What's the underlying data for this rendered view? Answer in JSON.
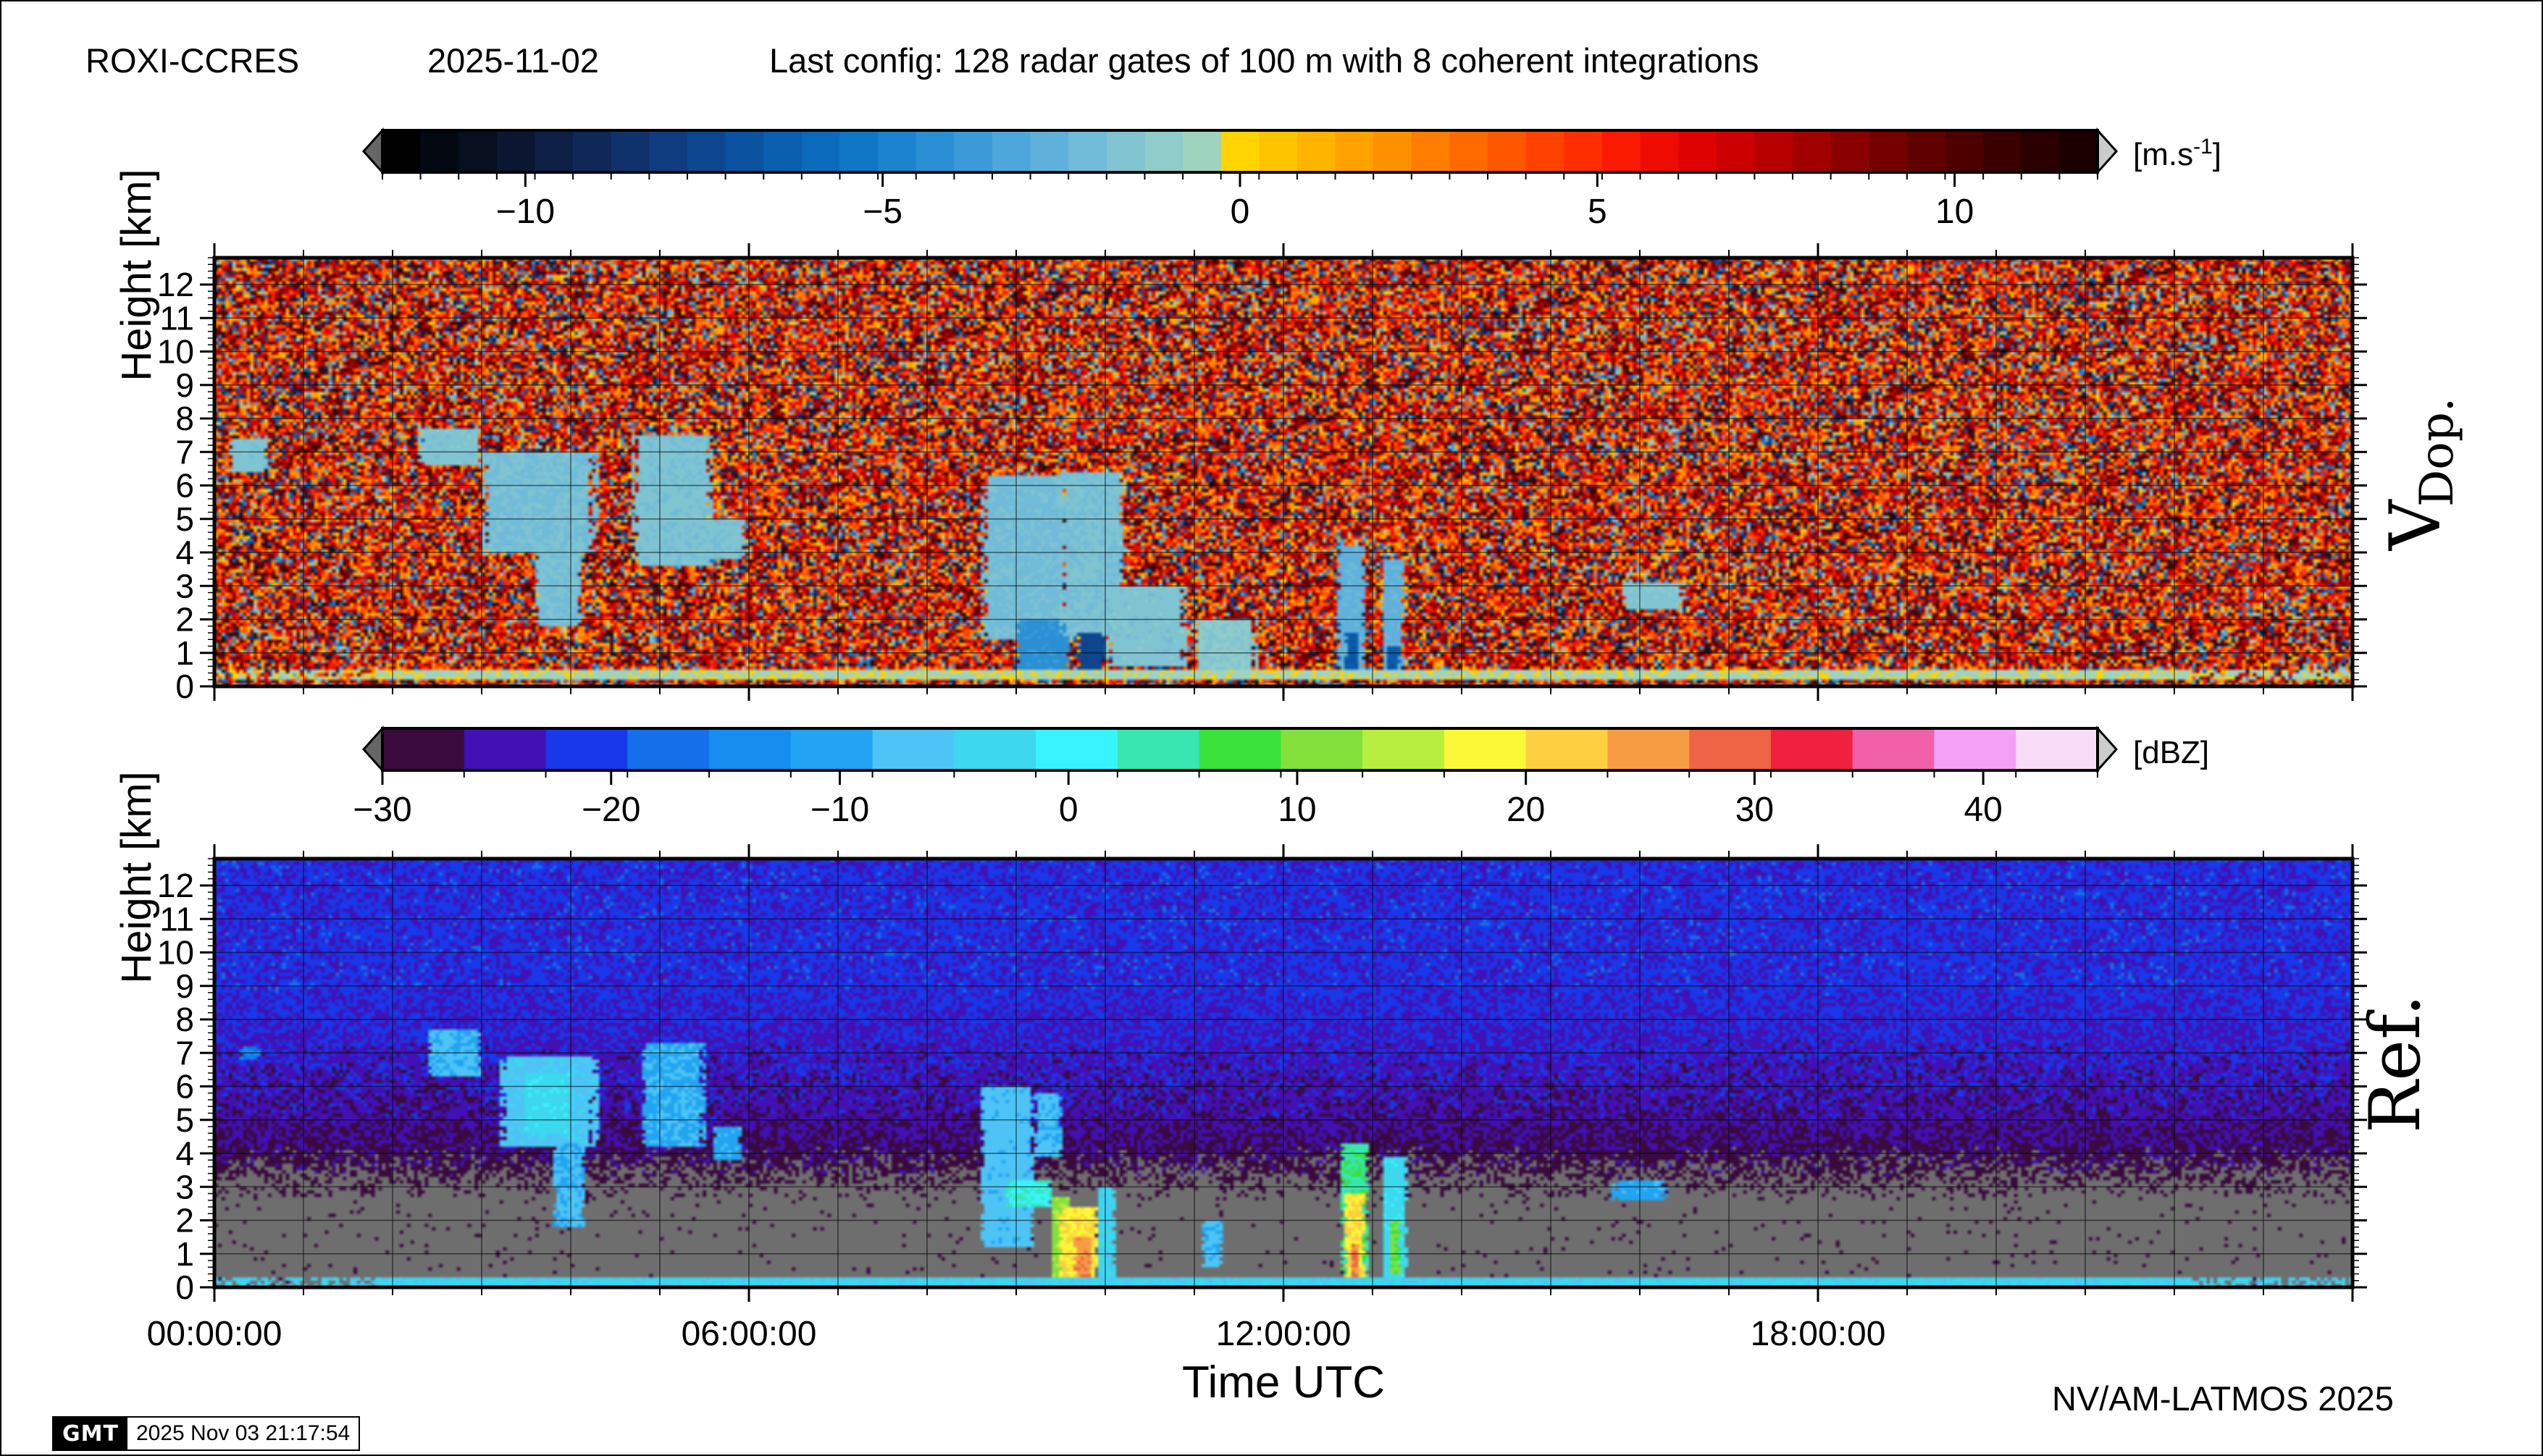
{
  "header": {
    "site": "ROXI-CCRES",
    "date": "2025-11-02",
    "config": "Last config: 128 radar gates of 100 m with 8 coherent integrations"
  },
  "credit": "NV/AM-LATMOS 2025",
  "gmt": {
    "logo": "GMT",
    "timestamp": "2025 Nov 03 21:17:54"
  },
  "chart_data": [
    {
      "type": "heatmap",
      "panel": "top",
      "side_label": "V",
      "side_label_sub": "Dop.",
      "ylabel": "Height [km]",
      "xlabel": "",
      "ylim": [
        0,
        12.8
      ],
      "yticks": [
        "0",
        "1",
        "2",
        "3",
        "4",
        "5",
        "6",
        "7",
        "8",
        "9",
        "10",
        "11",
        "12"
      ],
      "xlim_hours": [
        0,
        24
      ],
      "grid": true,
      "colorbar": {
        "unit": "[m.s-1]",
        "unit_base": "[m.s",
        "unit_sup": "-1",
        "unit_close": "]",
        "range": [
          -12,
          12
        ],
        "ticks": [
          -10,
          -5,
          0,
          5,
          10
        ],
        "tick_labels": [
          "−10",
          "−5",
          "0",
          "5",
          "10"
        ],
        "colors": [
          "#000000",
          "#040810",
          "#08101f",
          "#0b1731",
          "#0e1f45",
          "#102858",
          "#10326c",
          "#0f3c7e",
          "#0d4790",
          "#0b53a0",
          "#0a5eae",
          "#0b6abb",
          "#1076c6",
          "#1b83ce",
          "#2a8fd4",
          "#3b9bd8",
          "#4ea7db",
          "#5fb1dc",
          "#70bbd8",
          "#80c4d2",
          "#90ccc9",
          "#9ed3c0",
          "#ffd400",
          "#ffc400",
          "#ffb400",
          "#ffa200",
          "#ff9000",
          "#ff7d00",
          "#ff6a00",
          "#ff5600",
          "#ff4200",
          "#ff2e00",
          "#f91a00",
          "#ee0c00",
          "#de0300",
          "#cc0000",
          "#b60000",
          "#a00000",
          "#8a0000",
          "#740000",
          "#600000",
          "#4c0000",
          "#3a0000",
          "#2a0000",
          "#1c0000"
        ]
      },
      "background": "noise-warm",
      "features": [
        {
          "t0": 0.15,
          "t1": 0.6,
          "h0": 6.4,
          "h1": 7.4,
          "v": -1.6
        },
        {
          "t0": 2.3,
          "t1": 3.0,
          "h0": 6.6,
          "h1": 7.7,
          "v": -1.6
        },
        {
          "t0": 3.0,
          "t1": 4.3,
          "h0": 4.0,
          "h1": 7.0,
          "v": -1.9
        },
        {
          "t0": 3.6,
          "t1": 4.1,
          "h0": 1.8,
          "h1": 4.5,
          "v": -1.9
        },
        {
          "t0": 4.7,
          "t1": 5.6,
          "h0": 3.6,
          "h1": 7.5,
          "v": -1.7
        },
        {
          "t0": 5.5,
          "t1": 5.95,
          "h0": 3.8,
          "h1": 5.0,
          "v": -1.7
        },
        {
          "t0": 8.6,
          "t1": 9.6,
          "h0": 1.4,
          "h1": 6.3,
          "v": -2.0
        },
        {
          "t0": 9.0,
          "t1": 9.6,
          "h0": 0.2,
          "h1": 2.0,
          "v": -4.2
        },
        {
          "t0": 9.5,
          "t1": 10.2,
          "h0": 1.5,
          "h1": 6.4,
          "v": -1.8
        },
        {
          "t0": 9.7,
          "t1": 10.0,
          "h0": 0.2,
          "h1": 1.6,
          "v": -7.5
        },
        {
          "t0": 10.0,
          "t1": 10.9,
          "h0": 0.6,
          "h1": 3.0,
          "v": -1.6
        },
        {
          "t0": 11.0,
          "t1": 11.7,
          "h0": 0.4,
          "h1": 2.0,
          "v": -1.3
        },
        {
          "t0": 12.6,
          "t1": 12.9,
          "h0": 0.2,
          "h1": 4.2,
          "v": -2.6
        },
        {
          "t0": 12.7,
          "t1": 12.85,
          "h0": 0.2,
          "h1": 1.6,
          "v": -6.5
        },
        {
          "t0": 13.1,
          "t1": 13.35,
          "h0": 0.2,
          "h1": 3.8,
          "v": -2.6
        },
        {
          "t0": 13.15,
          "t1": 13.3,
          "h0": 0.2,
          "h1": 1.2,
          "v": -6.5
        },
        {
          "t0": 15.8,
          "t1": 16.5,
          "h0": 2.3,
          "h1": 3.1,
          "v": -1.5
        },
        {
          "t0": 0.0,
          "t1": 24.0,
          "h0": 0.2,
          "h1": 0.5,
          "v": -0.4
        }
      ]
    },
    {
      "type": "heatmap",
      "panel": "bottom",
      "side_label": "Ref.",
      "ylabel": "Height [km]",
      "xlabel": "Time UTC",
      "ylim": [
        0,
        12.8
      ],
      "yticks": [
        "0",
        "1",
        "2",
        "3",
        "4",
        "5",
        "6",
        "7",
        "8",
        "9",
        "10",
        "11",
        "12"
      ],
      "xlim_hours": [
        0,
        24
      ],
      "xticks": [
        "00:00:00",
        "06:00:00",
        "12:00:00",
        "18:00:00"
      ],
      "grid": true,
      "colorbar": {
        "unit": "[dBZ]",
        "range": [
          -30,
          45
        ],
        "ticks": [
          -30,
          -20,
          -10,
          0,
          10,
          20,
          30,
          40
        ],
        "tick_labels": [
          "−30",
          "−20",
          "−10",
          "0",
          "10",
          "20",
          "30",
          "40"
        ],
        "colors": [
          "#3a0a3e",
          "#4210b4",
          "#1838ea",
          "#1470e8",
          "#168ef0",
          "#22a4f2",
          "#4ec4f6",
          "#3cd8ee",
          "#38f4ff",
          "#38e6b2",
          "#3ae23a",
          "#84e03a",
          "#b8ee40",
          "#fcf838",
          "#fcd040",
          "#f89c44",
          "#ee6444",
          "#f02040",
          "#f060a8",
          "#f4a0f4",
          "#f8dcf8"
        ]
      },
      "background": "noise-blue-over-gray",
      "features": [
        {
          "t0": 0.3,
          "t1": 0.5,
          "h0": 6.8,
          "h1": 7.2,
          "v": -16
        },
        {
          "t0": 2.4,
          "t1": 3.0,
          "h0": 6.3,
          "h1": 7.7,
          "v": -8
        },
        {
          "t0": 3.2,
          "t1": 4.3,
          "h0": 4.2,
          "h1": 6.9,
          "v": -6
        },
        {
          "t0": 3.5,
          "t1": 4.0,
          "h0": 4.6,
          "h1": 6.4,
          "v": -3
        },
        {
          "t0": 3.8,
          "t1": 4.15,
          "h0": 1.8,
          "h1": 4.3,
          "v": -8
        },
        {
          "t0": 4.8,
          "t1": 5.5,
          "h0": 4.2,
          "h1": 7.3,
          "v": -9
        },
        {
          "t0": 5.6,
          "t1": 5.9,
          "h0": 3.8,
          "h1": 4.8,
          "v": -10
        },
        {
          "t0": 8.6,
          "t1": 9.2,
          "h0": 1.2,
          "h1": 6.0,
          "v": -7
        },
        {
          "t0": 8.9,
          "t1": 9.4,
          "h0": 2.4,
          "h1": 3.2,
          "v": 2
        },
        {
          "t0": 9.2,
          "t1": 9.5,
          "h0": 3.9,
          "h1": 5.8,
          "v": -8
        },
        {
          "t0": 9.4,
          "t1": 9.6,
          "h0": 0.2,
          "h1": 2.7,
          "v": 12
        },
        {
          "t0": 9.5,
          "t1": 9.9,
          "h0": 0.2,
          "h1": 2.4,
          "v": 20
        },
        {
          "t0": 9.65,
          "t1": 9.85,
          "h0": 0.2,
          "h1": 1.5,
          "v": 26
        },
        {
          "t0": 9.9,
          "t1": 10.1,
          "h0": 0.2,
          "h1": 3.0,
          "v": -4
        },
        {
          "t0": 11.1,
          "t1": 11.3,
          "h0": 0.6,
          "h1": 2.0,
          "v": -8
        },
        {
          "t0": 12.65,
          "t1": 12.95,
          "h0": 0.2,
          "h1": 4.3,
          "v": 5
        },
        {
          "t0": 12.7,
          "t1": 12.9,
          "h0": 0.3,
          "h1": 2.8,
          "v": 20
        },
        {
          "t0": 12.75,
          "t1": 12.85,
          "h0": 0.3,
          "h1": 1.3,
          "v": 28
        },
        {
          "t0": 13.1,
          "t1": 13.4,
          "h0": 0.2,
          "h1": 3.9,
          "v": -3
        },
        {
          "t0": 13.2,
          "t1": 13.3,
          "h0": 0.4,
          "h1": 2.0,
          "v": 10
        },
        {
          "t0": 15.7,
          "t1": 16.3,
          "h0": 2.6,
          "h1": 3.2,
          "v": -10
        },
        {
          "t0": 0.0,
          "t1": 24.0,
          "h0": 0.0,
          "h1": 0.25,
          "v": -4
        }
      ]
    }
  ]
}
